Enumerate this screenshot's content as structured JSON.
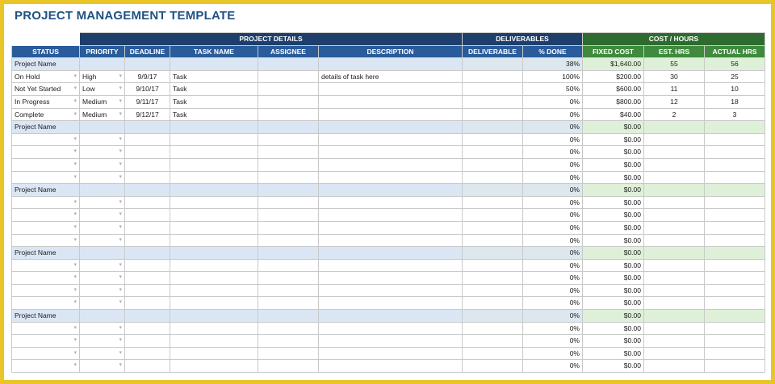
{
  "title": "PROJECT MANAGEMENT TEMPLATE",
  "colors": {
    "border_frame": "#e9c528",
    "title": "#1f5286",
    "group_header_blue": "#1e3f6b",
    "column_header_blue": "#2a5b9a",
    "group_header_green": "#2e6b2f",
    "column_header_green": "#3f8a3e",
    "project_row": "#dbe6f5",
    "cost_row": "#dff0d8"
  },
  "groups": {
    "details": "PROJECT DETAILS",
    "deliverables": "DELIVERABLES",
    "cost": "COST / HOURS"
  },
  "columns": [
    "STATUS",
    "PRIORITY",
    "DEADLINE",
    "TASK NAME",
    "ASSIGNEE",
    "DESCRIPTION",
    "DELIVERABLE",
    "% DONE",
    "FIXED COST",
    "EST. HRS",
    "ACTUAL HRS"
  ],
  "sections": [
    {
      "project": {
        "name": "Project Name",
        "done": "38%",
        "cost": "$1,640.00",
        "est": "55",
        "actual": "56"
      },
      "tasks": [
        {
          "status": "On Hold",
          "priority": "High",
          "deadline": "9/9/17",
          "task": "Task",
          "assignee": "",
          "description": "details of task here",
          "deliverable": "",
          "done": "100%",
          "cost": "$200.00",
          "est": "30",
          "actual": "25"
        },
        {
          "status": "Not Yet Started",
          "priority": "Low",
          "deadline": "9/10/17",
          "task": "Task",
          "assignee": "",
          "description": "",
          "deliverable": "",
          "done": "50%",
          "cost": "$600.00",
          "est": "11",
          "actual": "10"
        },
        {
          "status": "In Progress",
          "priority": "Medium",
          "deadline": "9/11/17",
          "task": "Task",
          "assignee": "",
          "description": "",
          "deliverable": "",
          "done": "0%",
          "cost": "$800.00",
          "est": "12",
          "actual": "18"
        },
        {
          "status": "Complete",
          "priority": "Medium",
          "deadline": "9/12/17",
          "task": "Task",
          "assignee": "",
          "description": "",
          "deliverable": "",
          "done": "0%",
          "cost": "$40.00",
          "est": "2",
          "actual": "3"
        }
      ]
    },
    {
      "project": {
        "name": "Project Name",
        "done": "0%",
        "cost": "$0.00",
        "est": "",
        "actual": ""
      },
      "tasks": [
        {
          "status": "",
          "priority": "",
          "deadline": "",
          "task": "",
          "assignee": "",
          "description": "",
          "deliverable": "",
          "done": "0%",
          "cost": "$0.00",
          "est": "",
          "actual": ""
        },
        {
          "status": "",
          "priority": "",
          "deadline": "",
          "task": "",
          "assignee": "",
          "description": "",
          "deliverable": "",
          "done": "0%",
          "cost": "$0.00",
          "est": "",
          "actual": ""
        },
        {
          "status": "",
          "priority": "",
          "deadline": "",
          "task": "",
          "assignee": "",
          "description": "",
          "deliverable": "",
          "done": "0%",
          "cost": "$0.00",
          "est": "",
          "actual": ""
        },
        {
          "status": "",
          "priority": "",
          "deadline": "",
          "task": "",
          "assignee": "",
          "description": "",
          "deliverable": "",
          "done": "0%",
          "cost": "$0.00",
          "est": "",
          "actual": ""
        }
      ]
    },
    {
      "project": {
        "name": "Project Name",
        "done": "0%",
        "cost": "$0.00",
        "est": "",
        "actual": ""
      },
      "tasks": [
        {
          "status": "",
          "priority": "",
          "deadline": "",
          "task": "",
          "assignee": "",
          "description": "",
          "deliverable": "",
          "done": "0%",
          "cost": "$0.00",
          "est": "",
          "actual": ""
        },
        {
          "status": "",
          "priority": "",
          "deadline": "",
          "task": "",
          "assignee": "",
          "description": "",
          "deliverable": "",
          "done": "0%",
          "cost": "$0.00",
          "est": "",
          "actual": ""
        },
        {
          "status": "",
          "priority": "",
          "deadline": "",
          "task": "",
          "assignee": "",
          "description": "",
          "deliverable": "",
          "done": "0%",
          "cost": "$0.00",
          "est": "",
          "actual": ""
        },
        {
          "status": "",
          "priority": "",
          "deadline": "",
          "task": "",
          "assignee": "",
          "description": "",
          "deliverable": "",
          "done": "0%",
          "cost": "$0.00",
          "est": "",
          "actual": ""
        }
      ]
    },
    {
      "project": {
        "name": "Project Name",
        "done": "0%",
        "cost": "$0.00",
        "est": "",
        "actual": ""
      },
      "tasks": [
        {
          "status": "",
          "priority": "",
          "deadline": "",
          "task": "",
          "assignee": "",
          "description": "",
          "deliverable": "",
          "done": "0%",
          "cost": "$0.00",
          "est": "",
          "actual": ""
        },
        {
          "status": "",
          "priority": "",
          "deadline": "",
          "task": "",
          "assignee": "",
          "description": "",
          "deliverable": "",
          "done": "0%",
          "cost": "$0.00",
          "est": "",
          "actual": ""
        },
        {
          "status": "",
          "priority": "",
          "deadline": "",
          "task": "",
          "assignee": "",
          "description": "",
          "deliverable": "",
          "done": "0%",
          "cost": "$0.00",
          "est": "",
          "actual": ""
        },
        {
          "status": "",
          "priority": "",
          "deadline": "",
          "task": "",
          "assignee": "",
          "description": "",
          "deliverable": "",
          "done": "0%",
          "cost": "$0.00",
          "est": "",
          "actual": ""
        }
      ]
    },
    {
      "project": {
        "name": "Project Name",
        "done": "0%",
        "cost": "$0.00",
        "est": "",
        "actual": ""
      },
      "tasks": [
        {
          "status": "",
          "priority": "",
          "deadline": "",
          "task": "",
          "assignee": "",
          "description": "",
          "deliverable": "",
          "done": "0%",
          "cost": "$0.00",
          "est": "",
          "actual": ""
        },
        {
          "status": "",
          "priority": "",
          "deadline": "",
          "task": "",
          "assignee": "",
          "description": "",
          "deliverable": "",
          "done": "0%",
          "cost": "$0.00",
          "est": "",
          "actual": ""
        },
        {
          "status": "",
          "priority": "",
          "deadline": "",
          "task": "",
          "assignee": "",
          "description": "",
          "deliverable": "",
          "done": "0%",
          "cost": "$0.00",
          "est": "",
          "actual": ""
        },
        {
          "status": "",
          "priority": "",
          "deadline": "",
          "task": "",
          "assignee": "",
          "description": "",
          "deliverable": "",
          "done": "0%",
          "cost": "$0.00",
          "est": "",
          "actual": ""
        }
      ]
    }
  ]
}
